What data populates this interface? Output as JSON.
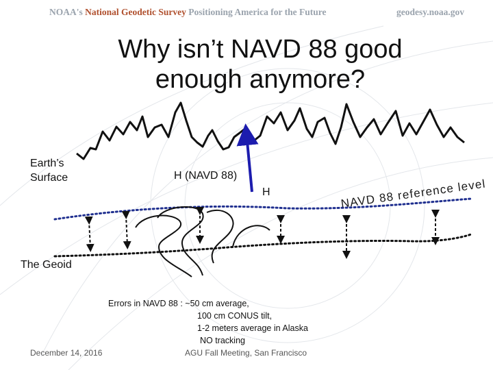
{
  "header": {
    "noaa_prefix": "NOAA's",
    "ngs_name": "National Geodetic Survey",
    "tagline": "Positioning America for the Future",
    "site": "geodesy.noaa.gov"
  },
  "title": {
    "line1": "Why isn’t NAVD 88 good",
    "line2": "enough anymore?"
  },
  "labels": {
    "earth_surface_line1": "Earth’s",
    "earth_surface_line2": "Surface",
    "h_navd": "H (NAVD 88)",
    "h": "H",
    "navd_reference": "NAVD 88 reference level",
    "geoid": "The Geoid"
  },
  "errors": {
    "line1": "Errors in NAVD 88 : ~50 cm average,",
    "line2": "100 cm CONUS tilt,",
    "line3": "1-2 meters average in Alaska",
    "line4": "NO tracking"
  },
  "footer": {
    "date": "December 14, 2016",
    "meeting": "AGU Fall Meeting, San Francisco"
  },
  "colors": {
    "reference_line": "#1f2f8f",
    "height_arrow": "#1c1cae",
    "terrain": "#111111",
    "geoid": "#111111"
  }
}
